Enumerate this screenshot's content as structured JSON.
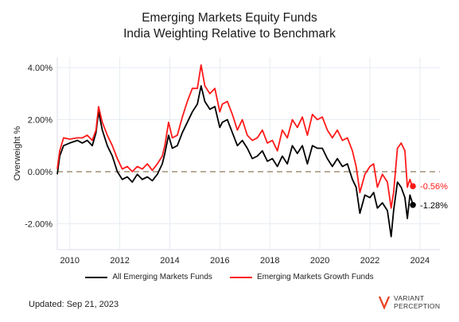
{
  "title_line1": "Emerging Markets Equity Funds",
  "title_line2": "India Weighting Relative to Benchmark",
  "footer": "Updated: Sep 21, 2023",
  "logo": {
    "line1": "VARIANT",
    "line2": "PERCEPTION",
    "accent": "#e8401c"
  },
  "colors": {
    "all": "#000000",
    "growth": "#ff1a1a",
    "zero_line": "#a89a80",
    "grid": "#e6ecf2"
  },
  "chart_data": {
    "type": "line",
    "ylabel": "Overweight %",
    "xlim": [
      2009.5,
      2024.8
    ],
    "ylim": [
      -3.0,
      4.4
    ],
    "x_ticks": [
      2010,
      2012,
      2014,
      2016,
      2018,
      2020,
      2022,
      2024
    ],
    "x_tick_labels": [
      "2010",
      "2012",
      "2014",
      "2016",
      "2018",
      "2020",
      "2022",
      "2024"
    ],
    "y_ticks": [
      -2,
      0,
      2,
      4
    ],
    "y_tick_labels": [
      "-2.00%",
      "0.00%",
      "2.00%",
      "4.00%"
    ],
    "reference_line": 0,
    "legend": "bottom",
    "series": [
      {
        "name": "All Emerging Markets Funds",
        "color": "#000000",
        "end_label": "-1.28%",
        "points": [
          [
            2009.5,
            -0.1
          ],
          [
            2009.6,
            0.6
          ],
          [
            2009.75,
            1.0
          ],
          [
            2010.0,
            1.1
          ],
          [
            2010.3,
            1.2
          ],
          [
            2010.5,
            1.1
          ],
          [
            2010.7,
            1.2
          ],
          [
            2010.9,
            1.0
          ],
          [
            2011.05,
            1.5
          ],
          [
            2011.15,
            2.3
          ],
          [
            2011.3,
            1.6
          ],
          [
            2011.5,
            1.0
          ],
          [
            2011.7,
            0.6
          ],
          [
            2011.9,
            0.0
          ],
          [
            2012.1,
            -0.3
          ],
          [
            2012.3,
            -0.2
          ],
          [
            2012.5,
            -0.4
          ],
          [
            2012.7,
            -0.1
          ],
          [
            2012.9,
            -0.3
          ],
          [
            2013.1,
            -0.2
          ],
          [
            2013.3,
            -0.35
          ],
          [
            2013.5,
            -0.1
          ],
          [
            2013.7,
            0.3
          ],
          [
            2013.8,
            0.7
          ],
          [
            2013.95,
            1.4
          ],
          [
            2014.1,
            0.9
          ],
          [
            2014.3,
            1.0
          ],
          [
            2014.5,
            1.5
          ],
          [
            2014.7,
            1.9
          ],
          [
            2014.9,
            2.3
          ],
          [
            2015.1,
            2.6
          ],
          [
            2015.25,
            3.3
          ],
          [
            2015.4,
            2.7
          ],
          [
            2015.6,
            2.4
          ],
          [
            2015.8,
            2.5
          ],
          [
            2016.0,
            1.7
          ],
          [
            2016.1,
            1.9
          ],
          [
            2016.3,
            2.0
          ],
          [
            2016.5,
            1.5
          ],
          [
            2016.7,
            1.0
          ],
          [
            2016.9,
            1.2
          ],
          [
            2017.1,
            0.9
          ],
          [
            2017.3,
            0.5
          ],
          [
            2017.5,
            0.6
          ],
          [
            2017.7,
            0.8
          ],
          [
            2017.9,
            0.4
          ],
          [
            2018.1,
            0.5
          ],
          [
            2018.3,
            0.2
          ],
          [
            2018.5,
            0.6
          ],
          [
            2018.7,
            0.3
          ],
          [
            2018.9,
            1.0
          ],
          [
            2019.1,
            0.7
          ],
          [
            2019.3,
            1.0
          ],
          [
            2019.5,
            0.3
          ],
          [
            2019.7,
            1.0
          ],
          [
            2019.9,
            0.9
          ],
          [
            2020.1,
            0.9
          ],
          [
            2020.3,
            0.5
          ],
          [
            2020.5,
            0.2
          ],
          [
            2020.7,
            0.5
          ],
          [
            2020.9,
            0.2
          ],
          [
            2021.1,
            0.3
          ],
          [
            2021.3,
            -0.3
          ],
          [
            2021.45,
            -0.6
          ],
          [
            2021.6,
            -1.6
          ],
          [
            2021.8,
            -0.9
          ],
          [
            2022.0,
            -1.0
          ],
          [
            2022.15,
            -0.8
          ],
          [
            2022.3,
            -1.4
          ],
          [
            2022.5,
            -1.2
          ],
          [
            2022.7,
            -1.5
          ],
          [
            2022.85,
            -2.5
          ],
          [
            2022.95,
            -1.5
          ],
          [
            2023.1,
            -0.4
          ],
          [
            2023.25,
            -0.6
          ],
          [
            2023.4,
            -1.0
          ],
          [
            2023.5,
            -1.8
          ],
          [
            2023.6,
            -0.9
          ],
          [
            2023.7,
            -1.2
          ],
          [
            2023.72,
            -1.28
          ]
        ]
      },
      {
        "name": "Emerging Markets Growth Funds",
        "color": "#ff1a1a",
        "end_label": "-0.56%",
        "points": [
          [
            2009.5,
            0.1
          ],
          [
            2009.6,
            0.8
          ],
          [
            2009.75,
            1.3
          ],
          [
            2010.0,
            1.25
          ],
          [
            2010.3,
            1.3
          ],
          [
            2010.5,
            1.3
          ],
          [
            2010.7,
            1.4
          ],
          [
            2010.9,
            1.2
          ],
          [
            2011.05,
            1.6
          ],
          [
            2011.15,
            2.5
          ],
          [
            2011.3,
            1.9
          ],
          [
            2011.5,
            1.4
          ],
          [
            2011.7,
            1.0
          ],
          [
            2011.9,
            0.5
          ],
          [
            2012.1,
            0.1
          ],
          [
            2012.3,
            0.2
          ],
          [
            2012.5,
            0.0
          ],
          [
            2012.7,
            0.2
          ],
          [
            2012.9,
            0.1
          ],
          [
            2013.1,
            0.3
          ],
          [
            2013.3,
            0.05
          ],
          [
            2013.5,
            0.3
          ],
          [
            2013.7,
            0.6
          ],
          [
            2013.8,
            1.0
          ],
          [
            2013.95,
            1.9
          ],
          [
            2014.1,
            1.3
          ],
          [
            2014.3,
            1.4
          ],
          [
            2014.5,
            2.1
          ],
          [
            2014.7,
            2.7
          ],
          [
            2014.9,
            3.2
          ],
          [
            2015.1,
            3.2
          ],
          [
            2015.25,
            4.1
          ],
          [
            2015.4,
            3.3
          ],
          [
            2015.6,
            3.0
          ],
          [
            2015.8,
            3.2
          ],
          [
            2016.0,
            2.3
          ],
          [
            2016.1,
            2.6
          ],
          [
            2016.3,
            2.7
          ],
          [
            2016.5,
            2.2
          ],
          [
            2016.7,
            1.6
          ],
          [
            2016.9,
            2.0
          ],
          [
            2017.1,
            1.4
          ],
          [
            2017.3,
            1.2
          ],
          [
            2017.5,
            1.3
          ],
          [
            2017.7,
            1.6
          ],
          [
            2017.9,
            1.1
          ],
          [
            2018.1,
            1.2
          ],
          [
            2018.3,
            0.8
          ],
          [
            2018.5,
            1.6
          ],
          [
            2018.7,
            1.3
          ],
          [
            2018.9,
            2.0
          ],
          [
            2019.1,
            1.7
          ],
          [
            2019.3,
            2.1
          ],
          [
            2019.5,
            1.4
          ],
          [
            2019.7,
            2.2
          ],
          [
            2019.9,
            2.0
          ],
          [
            2020.1,
            2.1
          ],
          [
            2020.3,
            1.6
          ],
          [
            2020.5,
            1.3
          ],
          [
            2020.7,
            1.6
          ],
          [
            2020.9,
            1.2
          ],
          [
            2021.1,
            1.3
          ],
          [
            2021.3,
            0.8
          ],
          [
            2021.45,
            0.2
          ],
          [
            2021.6,
            -0.8
          ],
          [
            2021.8,
            -0.1
          ],
          [
            2022.0,
            0.2
          ],
          [
            2022.15,
            0.3
          ],
          [
            2022.3,
            -0.6
          ],
          [
            2022.5,
            -0.1
          ],
          [
            2022.7,
            -0.4
          ],
          [
            2022.85,
            -1.4
          ],
          [
            2022.95,
            -0.8
          ],
          [
            2023.1,
            0.9
          ],
          [
            2023.25,
            1.1
          ],
          [
            2023.4,
            0.8
          ],
          [
            2023.5,
            -0.6
          ],
          [
            2023.6,
            -0.3
          ],
          [
            2023.7,
            -0.6
          ],
          [
            2023.72,
            -0.56
          ]
        ]
      }
    ]
  }
}
